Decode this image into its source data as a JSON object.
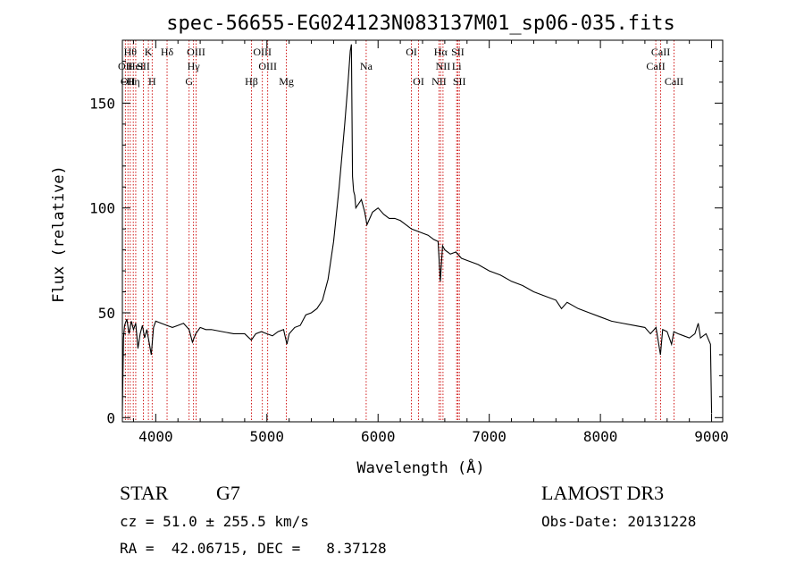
{
  "chart_data": {
    "type": "line",
    "title": "spec-56655-EG024123N083137M01_sp06-035.fits",
    "xlabel": "Wavelength (Å)",
    "ylabel": "Flux (relative)",
    "xlim": [
      3700,
      9100
    ],
    "ylim": [
      -2,
      180
    ],
    "xticks": [
      4000,
      5000,
      6000,
      7000,
      8000,
      9000
    ],
    "yticks": [
      0,
      50,
      100,
      150
    ],
    "grid": false,
    "series": [
      {
        "color": "#000000",
        "x": [
          3700,
          3710,
          3720,
          3740,
          3760,
          3780,
          3800,
          3820,
          3840,
          3860,
          3880,
          3900,
          3920,
          3940,
          3960,
          3980,
          4000,
          4050,
          4100,
          4150,
          4200,
          4250,
          4300,
          4330,
          4360,
          4400,
          4450,
          4500,
          4600,
          4700,
          4800,
          4860,
          4900,
          4950,
          5000,
          5050,
          5100,
          5150,
          5180,
          5200,
          5250,
          5300,
          5350,
          5400,
          5450,
          5500,
          5550,
          5600,
          5650,
          5700,
          5730,
          5750,
          5760,
          5770,
          5780,
          5790,
          5800,
          5850,
          5880,
          5900,
          5950,
          6000,
          6050,
          6100,
          6150,
          6200,
          6250,
          6300,
          6350,
          6400,
          6450,
          6500,
          6540,
          6560,
          6580,
          6600,
          6650,
          6700,
          6750,
          6800,
          6900,
          7000,
          7100,
          7200,
          7300,
          7400,
          7500,
          7600,
          7650,
          7700,
          7800,
          7900,
          8000,
          8100,
          8200,
          8300,
          8400,
          8450,
          8500,
          8540,
          8560,
          8600,
          8640,
          8660,
          8700,
          8750,
          8800,
          8850,
          8880,
          8900,
          8950,
          8990,
          9000
        ],
        "values": [
          3,
          38,
          44,
          47,
          40,
          46,
          42,
          45,
          33,
          40,
          44,
          38,
          42,
          36,
          30,
          43,
          46,
          45,
          44,
          43,
          44,
          45,
          42,
          36,
          40,
          43,
          42,
          42,
          41,
          40,
          40,
          37,
          40,
          41,
          40,
          39,
          41,
          42,
          35,
          40,
          43,
          44,
          49,
          50,
          52,
          56,
          66,
          84,
          110,
          140,
          160,
          175,
          178,
          115,
          108,
          106,
          100,
          104,
          98,
          92,
          98,
          100,
          97,
          95,
          95,
          94,
          92,
          90,
          89,
          88,
          87,
          85,
          84,
          65,
          82,
          80,
          78,
          79,
          76,
          75,
          73,
          70,
          68,
          65,
          63,
          60,
          58,
          56,
          52,
          55,
          52,
          50,
          48,
          46,
          45,
          44,
          43,
          40,
          43,
          30,
          42,
          41,
          35,
          41,
          40,
          39,
          38,
          40,
          45,
          38,
          40,
          35,
          2
        ]
      }
    ],
    "lines": [
      {
        "wavelength": 3727,
        "label": "OII",
        "row": 2
      },
      {
        "wavelength": 3750,
        "label": "OII",
        "row": 3
      },
      {
        "wavelength": 3771,
        "label": "Hθ",
        "row": 1
      },
      {
        "wavelength": 3798,
        "label": "Hη",
        "row": 3
      },
      {
        "wavelength": 3820,
        "label": "HeI",
        "row": 2
      },
      {
        "wavelength": 3889,
        "label": "SII",
        "row": 2
      },
      {
        "wavelength": 3934,
        "label": "K",
        "row": 1
      },
      {
        "wavelength": 3968,
        "label": "H",
        "row": 3
      },
      {
        "wavelength": 4102,
        "label": "Hδ",
        "row": 1
      },
      {
        "wavelength": 4300,
        "label": "G",
        "row": 3
      },
      {
        "wavelength": 4340,
        "label": "Hγ",
        "row": 2
      },
      {
        "wavelength": 4363,
        "label": "OIII",
        "row": 1
      },
      {
        "wavelength": 4861,
        "label": "Hβ",
        "row": 3
      },
      {
        "wavelength": 4959,
        "label": "OIII",
        "row": 1
      },
      {
        "wavelength": 5007,
        "label": "OIII",
        "row": 2
      },
      {
        "wavelength": 5175,
        "label": "Mg",
        "row": 3
      },
      {
        "wavelength": 5893,
        "label": "Na",
        "row": 2
      },
      {
        "wavelength": 6300,
        "label": "OI",
        "row": 1
      },
      {
        "wavelength": 6364,
        "label": "OI",
        "row": 3
      },
      {
        "wavelength": 6548,
        "label": "NII",
        "row": 3
      },
      {
        "wavelength": 6563,
        "label": "Hα",
        "row": 1
      },
      {
        "wavelength": 6584,
        "label": "NII",
        "row": 2
      },
      {
        "wavelength": 6707,
        "label": "Li",
        "row": 2
      },
      {
        "wavelength": 6717,
        "label": "SII",
        "row": 1
      },
      {
        "wavelength": 6731,
        "label": "SII",
        "row": 3
      },
      {
        "wavelength": 8498,
        "label": "CaII",
        "row": 2
      },
      {
        "wavelength": 8542,
        "label": "CaII",
        "row": 1
      },
      {
        "wavelength": 8662,
        "label": "CaII",
        "row": 3
      }
    ],
    "line_color": "#cc0000"
  },
  "info": {
    "object_class": "STAR",
    "subclass": "G7",
    "survey": "LAMOST DR3",
    "redshift_text": "cz = 51.0 ± 255.5 km/s",
    "obs_date": "Obs-Date: 20131228",
    "coords": "RA =  42.06715, DEC =   8.37128"
  }
}
